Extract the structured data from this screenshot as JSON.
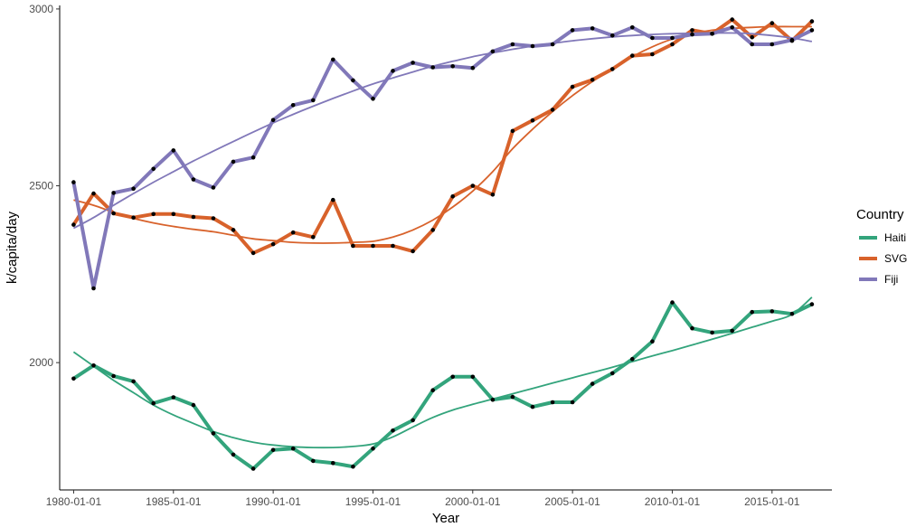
{
  "chart_data": {
    "type": "line",
    "xlabel": "Year",
    "ylabel": "k/capita/day",
    "x_ticks": [
      "1980-01-01",
      "1985-01-01",
      "1990-01-01",
      "1995-01-01",
      "2000-01-01",
      "2005-01-01",
      "2010-01-01",
      "2015-01-01"
    ],
    "y_ticks": [
      2000,
      2500,
      3000
    ],
    "xlim": [
      1979.3,
      2018.0
    ],
    "ylim": [
      1640,
      3010
    ],
    "grid": false,
    "legend": {
      "title": "Country",
      "position": "right"
    },
    "x": [
      1980,
      1981,
      1982,
      1983,
      1984,
      1985,
      1986,
      1987,
      1988,
      1989,
      1990,
      1991,
      1992,
      1993,
      1994,
      1995,
      1996,
      1997,
      1998,
      1999,
      2000,
      2001,
      2002,
      2003,
      2004,
      2005,
      2006,
      2007,
      2008,
      2009,
      2010,
      2011,
      2012,
      2013,
      2014,
      2015,
      2016,
      2017
    ],
    "series": [
      {
        "name": "Haiti",
        "color": "#33a47c",
        "values": [
          1955,
          1992,
          1962,
          1947,
          1885,
          1902,
          1880,
          1800,
          1740,
          1700,
          1753,
          1757,
          1722,
          1716,
          1706,
          1757,
          1808,
          1837,
          1922,
          1960,
          1960,
          1895,
          1903,
          1875,
          1888,
          1888,
          1940,
          1970,
          2010,
          2060,
          2170,
          2097,
          2085,
          2090,
          2143,
          2145,
          2138,
          2165
        ],
        "trend": [
          2030,
          1990,
          1950,
          1915,
          1880,
          1852,
          1828,
          1805,
          1788,
          1775,
          1767,
          1762,
          1760,
          1760,
          1763,
          1770,
          1790,
          1818,
          1845,
          1866,
          1882,
          1897,
          1912,
          1927,
          1942,
          1957,
          1972,
          1987,
          2003,
          2019,
          2034,
          2050,
          2066,
          2083,
          2100,
          2117,
          2136,
          2185
        ]
      },
      {
        "name": "SVG",
        "color": "#d8622b",
        "values": [
          2390,
          2478,
          2422,
          2410,
          2420,
          2420,
          2412,
          2408,
          2375,
          2310,
          2335,
          2368,
          2355,
          2460,
          2330,
          2330,
          2330,
          2315,
          2375,
          2470,
          2500,
          2475,
          2655,
          2685,
          2715,
          2780,
          2800,
          2830,
          2868,
          2872,
          2900,
          2940,
          2930,
          2970,
          2920,
          2960,
          2910,
          2965
        ],
        "trend": [
          2460,
          2445,
          2425,
          2408,
          2395,
          2385,
          2377,
          2370,
          2360,
          2350,
          2345,
          2340,
          2338,
          2338,
          2340,
          2343,
          2355,
          2375,
          2403,
          2440,
          2485,
          2540,
          2605,
          2660,
          2710,
          2755,
          2795,
          2830,
          2865,
          2893,
          2915,
          2930,
          2940,
          2945,
          2948,
          2950,
          2950,
          2950
        ]
      },
      {
        "name": "Fiji",
        "color": "#8178b9",
        "values": [
          2510,
          2210,
          2480,
          2492,
          2548,
          2600,
          2518,
          2495,
          2568,
          2580,
          2686,
          2728,
          2742,
          2857,
          2798,
          2746,
          2825,
          2848,
          2835,
          2838,
          2833,
          2880,
          2900,
          2895,
          2900,
          2940,
          2945,
          2925,
          2948,
          2918,
          2918,
          2928,
          2930,
          2948,
          2900,
          2900,
          2912,
          2940
        ],
        "trend": [
          2380,
          2410,
          2445,
          2478,
          2510,
          2540,
          2570,
          2598,
          2625,
          2652,
          2678,
          2702,
          2725,
          2747,
          2768,
          2788,
          2805,
          2822,
          2838,
          2852,
          2865,
          2876,
          2886,
          2895,
          2903,
          2910,
          2916,
          2921,
          2925,
          2928,
          2930,
          2931,
          2932,
          2932,
          2930,
          2925,
          2918,
          2908
        ]
      }
    ]
  }
}
